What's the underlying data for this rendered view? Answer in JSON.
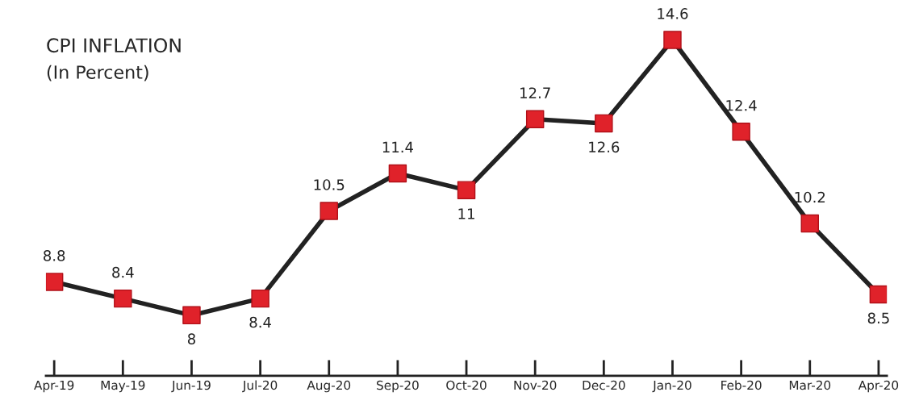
{
  "chart_data": {
    "type": "line",
    "title": "CPI INFLATION",
    "subtitle": "(In Percent)",
    "categories": [
      "Apr-19",
      "May-19",
      "Jun-19",
      "Jul-20",
      "Aug-20",
      "Sep-20",
      "Oct-20",
      "Nov-20",
      "Dec-20",
      "Jan-20",
      "Feb-20",
      "Mar-20",
      "Apr-20"
    ],
    "series": [
      {
        "color": "#222222",
        "colors": [
          "#e0222a",
          "#e0222a",
          "#e0222a",
          "#e0222a",
          "#e0222a",
          "#e0222a",
          "#e0222a",
          "#e0222a",
          "#e0222a",
          "#e0222a",
          "#e0222a",
          "#e0222a",
          "#e0222a"
        ],
        "values": [
          8.8,
          8.4,
          8,
          8.4,
          10.5,
          11.4,
          11,
          12.7,
          12.6,
          14.6,
          12.4,
          10.2,
          8.5
        ]
      }
    ],
    "data_labels": true,
    "marker": "square",
    "line_style": "solid",
    "grid": false,
    "legend": false
  }
}
